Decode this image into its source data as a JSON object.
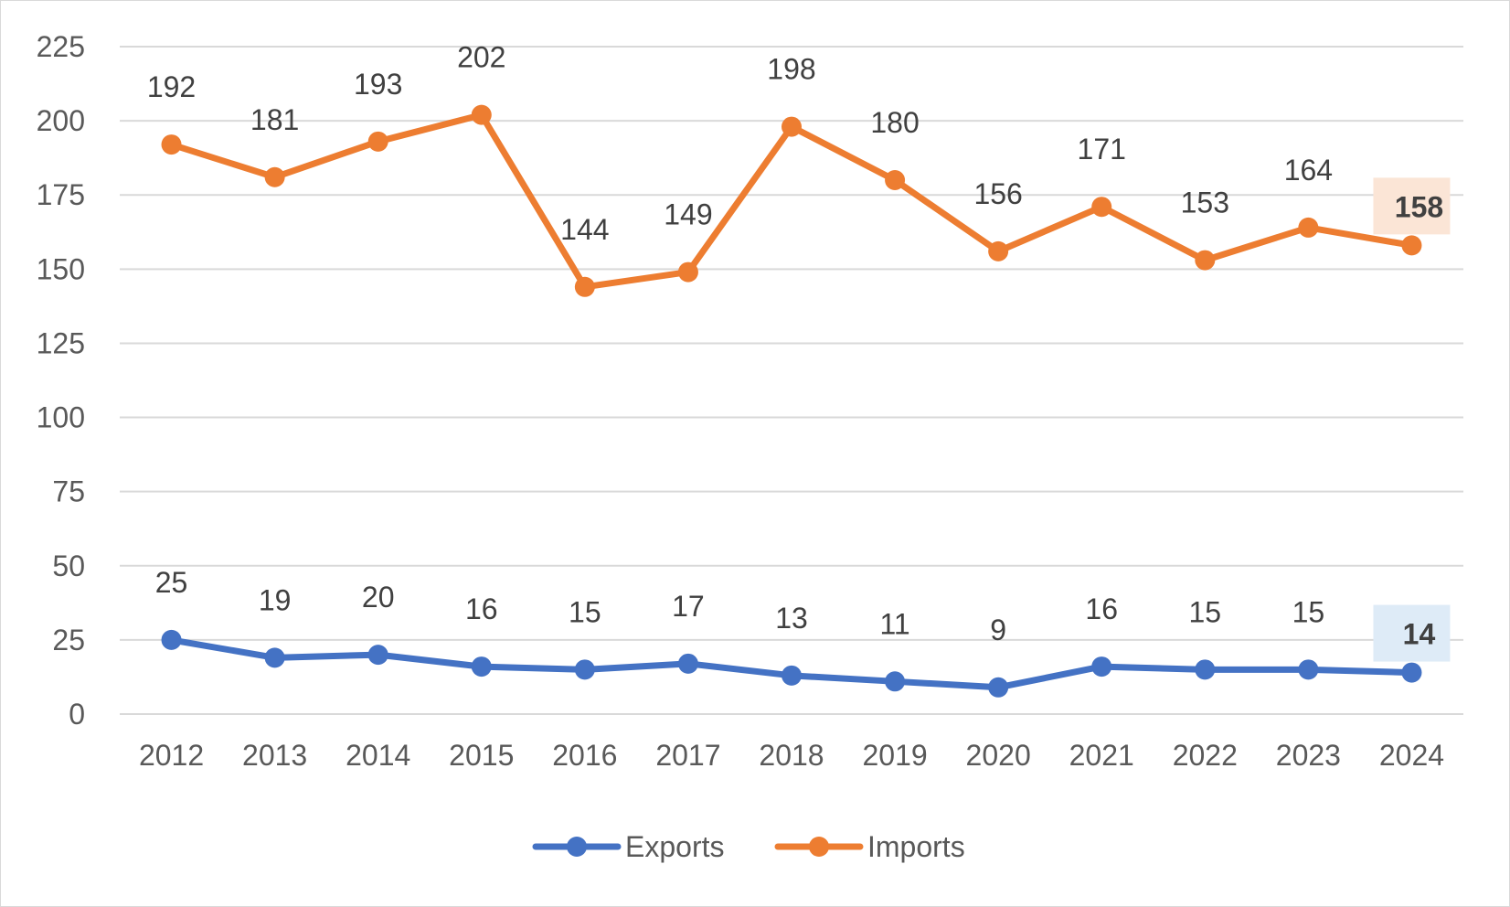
{
  "chart_data": {
    "type": "line",
    "title": "",
    "xlabel": "",
    "ylabel": "",
    "categories": [
      "2012",
      "2013",
      "2014",
      "2015",
      "2016",
      "2017",
      "2018",
      "2019",
      "2020",
      "2021",
      "2022",
      "2023",
      "2024"
    ],
    "ylim": [
      0,
      225
    ],
    "yticks": [
      0,
      25,
      50,
      75,
      100,
      125,
      150,
      175,
      200,
      225
    ],
    "grid": true,
    "legend_position": "bottom",
    "series": [
      {
        "name": "Exports",
        "color": "#4472C4",
        "highlight_bg": "#DEEBF7",
        "values": [
          25,
          19,
          20,
          16,
          15,
          17,
          13,
          11,
          9,
          16,
          15,
          15,
          14
        ]
      },
      {
        "name": "Imports",
        "color": "#ED7D31",
        "highlight_bg": "#FBE5D6",
        "values": [
          192,
          181,
          193,
          202,
          144,
          149,
          198,
          180,
          156,
          171,
          153,
          164,
          158
        ]
      }
    ],
    "highlight_last_point": true
  }
}
